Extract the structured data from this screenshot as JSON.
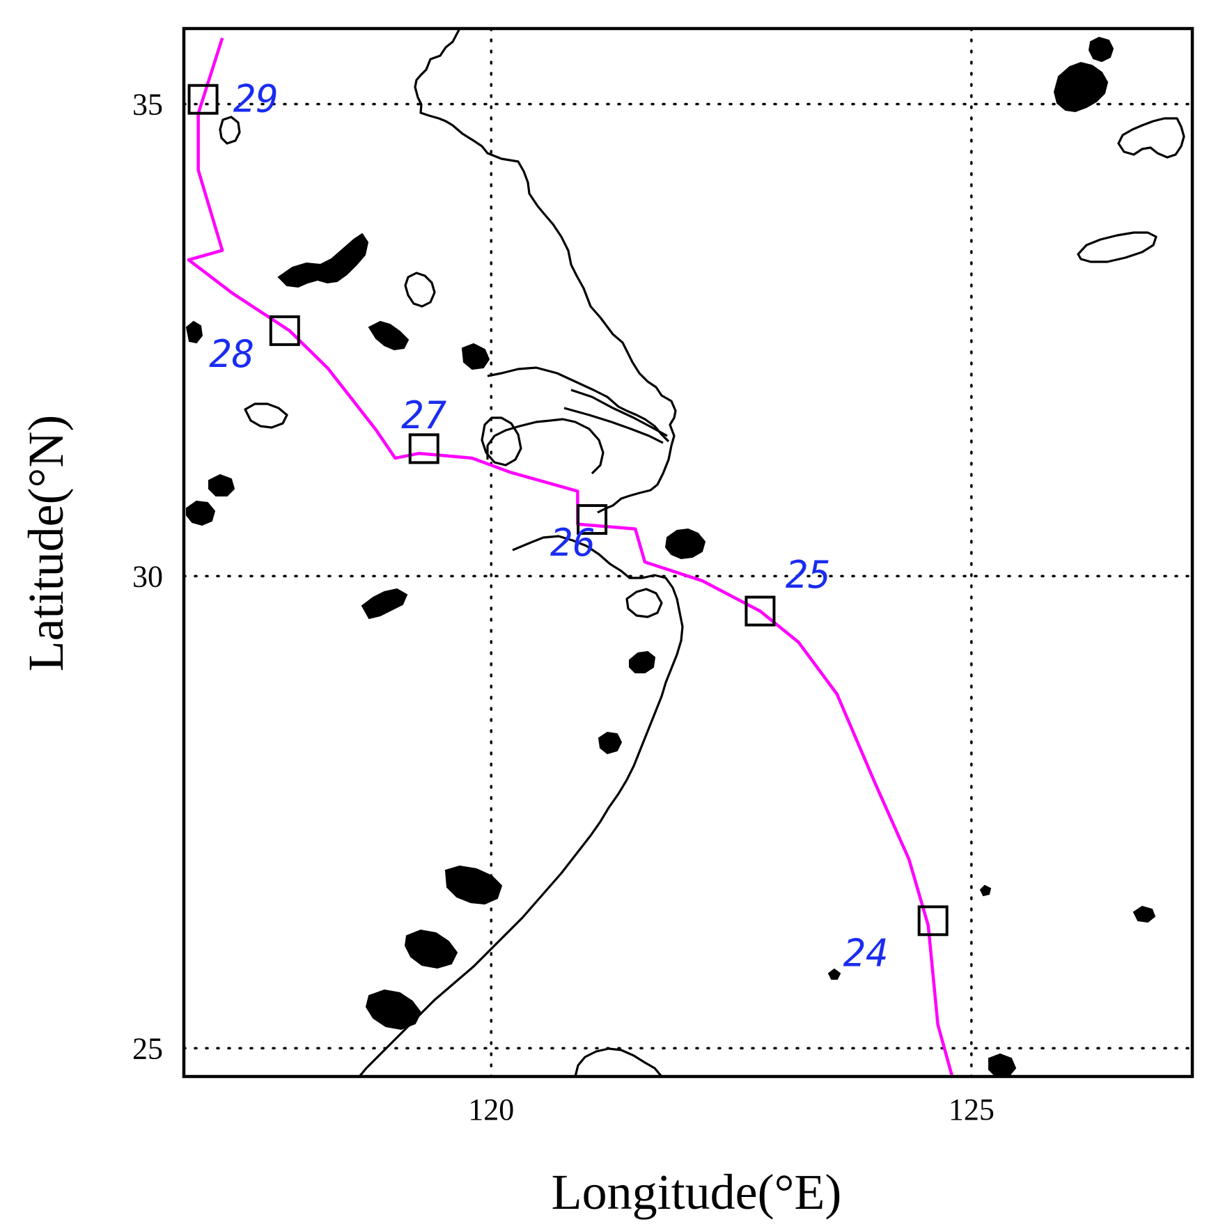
{
  "colors": {
    "track": "#ff00ff",
    "day_label": "#1a2cf0",
    "coastline": "#000000",
    "gridline": "#000000",
    "frame": "#000000"
  },
  "chart_data": {
    "type": "map",
    "xlabel": "Longitude(°E)",
    "ylabel": "Latitude(°N)",
    "xlim": [
      116.8,
      127.3
    ],
    "ylim": [
      24.7,
      35.8
    ],
    "x_ticks": [
      {
        "value": 120,
        "label": "120"
      },
      {
        "value": 125,
        "label": "125"
      }
    ],
    "y_ticks": [
      {
        "value": 25,
        "label": "25"
      },
      {
        "value": 30,
        "label": "30"
      },
      {
        "value": 35,
        "label": "35"
      }
    ],
    "grid": true,
    "track": {
      "points": [
        [
          124.8,
          24.7
        ],
        [
          124.65,
          25.25
        ],
        [
          124.55,
          26.3
        ],
        [
          124.35,
          27.0
        ],
        [
          124.0,
          27.8
        ],
        [
          123.6,
          28.75
        ],
        [
          123.2,
          29.3
        ],
        [
          122.8,
          29.63
        ],
        [
          122.2,
          29.95
        ],
        [
          121.6,
          30.15
        ],
        [
          121.5,
          30.5
        ],
        [
          120.9,
          30.55
        ],
        [
          120.9,
          30.9
        ],
        [
          120.2,
          31.1
        ],
        [
          119.8,
          31.25
        ],
        [
          119.25,
          31.3
        ],
        [
          119.0,
          31.25
        ],
        [
          118.8,
          31.55
        ],
        [
          118.3,
          32.2
        ],
        [
          117.9,
          32.6
        ],
        [
          117.3,
          33.0
        ],
        [
          116.85,
          33.35
        ],
        [
          117.2,
          33.45
        ],
        [
          116.95,
          34.3
        ],
        [
          116.95,
          34.9
        ],
        [
          117.2,
          35.7
        ]
      ],
      "day_markers": [
        {
          "day": "24",
          "lon": 124.6,
          "lat": 26.35,
          "label_dx": -0.7,
          "label_dy": -0.35
        },
        {
          "day": "25",
          "lon": 122.8,
          "lat": 29.63,
          "label_dx": 0.5,
          "label_dy": 0.38
        },
        {
          "day": "26",
          "lon": 121.05,
          "lat": 30.6,
          "label_dx": -0.2,
          "label_dy": -0.25
        },
        {
          "day": "27",
          "lon": 119.3,
          "lat": 31.35,
          "label_dx": 0.0,
          "label_dy": 0.35
        },
        {
          "day": "28",
          "lon": 117.85,
          "lat": 32.6,
          "label_dx": -0.55,
          "label_dy": -0.25
        },
        {
          "day": "29",
          "lon": 117.0,
          "lat": 35.05,
          "label_dx": 0.55,
          "label_dy": 0.0
        }
      ]
    }
  }
}
